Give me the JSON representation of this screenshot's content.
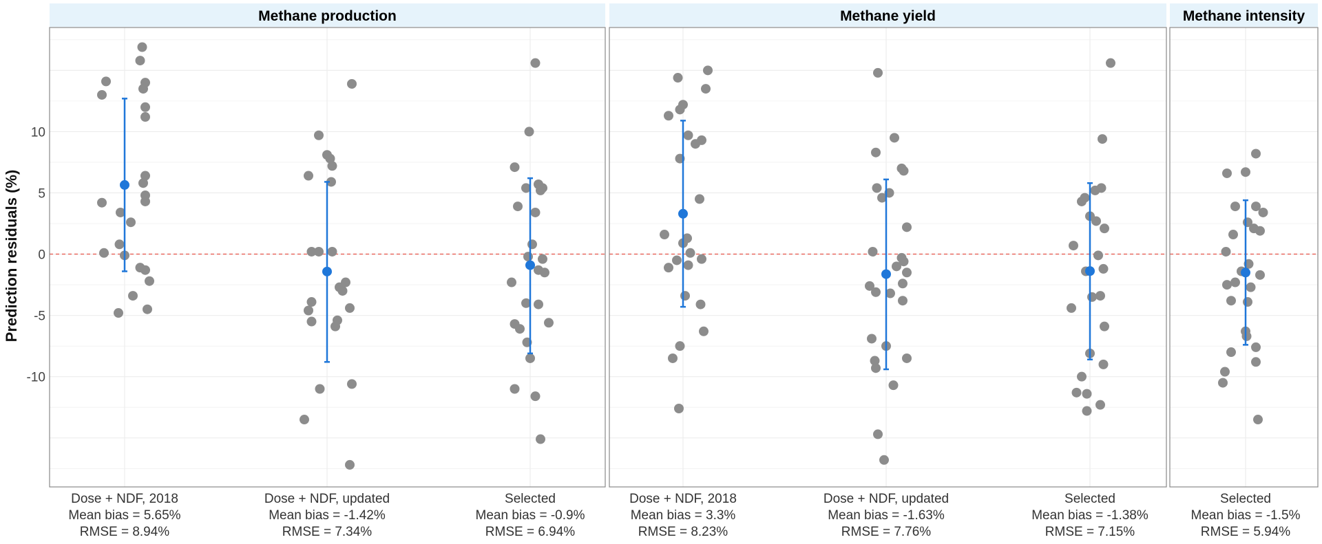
{
  "chart_data": {
    "type": "scatter",
    "ylabel": "Prediction residuals (%)",
    "ylim": [
      -19,
      18.5
    ],
    "y_ticks": [
      -10,
      -5,
      0,
      5,
      10
    ],
    "y_tick_labels": [
      "-10",
      "-5",
      "0",
      "5",
      "10"
    ],
    "reference_line": {
      "y": 0,
      "style": "dashed",
      "color": "#e8685e"
    },
    "colors": {
      "point": "#8c8c8c",
      "mean": "#1f77d9",
      "strip_bg": "#e6f3fb",
      "panel_border": "#888888",
      "grid": "#ececec"
    },
    "panels": [
      {
        "title": "Methane production",
        "groups": [
          {
            "label": "Dose + NDF, 2018",
            "mean_bias_label": "Mean bias = 5.65%",
            "rmse_label": "RMSE = 8.94%",
            "mean": 5.65,
            "ci": [
              -1.4,
              12.7
            ],
            "points": [
              [
                0.17,
                16.9
              ],
              [
                0.15,
                15.8
              ],
              [
                -0.18,
                14.1
              ],
              [
                0.2,
                14.0
              ],
              [
                0.18,
                13.5
              ],
              [
                -0.22,
                13.0
              ],
              [
                0.2,
                12.0
              ],
              [
                0.2,
                11.2
              ],
              [
                0.2,
                6.4
              ],
              [
                0.18,
                5.8
              ],
              [
                0.2,
                4.8
              ],
              [
                0.2,
                4.3
              ],
              [
                -0.22,
                4.2
              ],
              [
                -0.04,
                3.4
              ],
              [
                0.06,
                2.6
              ],
              [
                -0.05,
                0.8
              ],
              [
                -0.2,
                0.1
              ],
              [
                0.0,
                -0.1
              ],
              [
                0.15,
                -1.1
              ],
              [
                0.2,
                -1.3
              ],
              [
                0.24,
                -2.2
              ],
              [
                0.08,
                -3.4
              ],
              [
                0.22,
                -4.5
              ],
              [
                -0.06,
                -4.8
              ]
            ]
          },
          {
            "label": "Dose + NDF, updated",
            "mean_bias_label": "Mean bias = -1.42%",
            "rmse_label": "RMSE = 7.34%",
            "mean": -1.42,
            "ci": [
              -8.8,
              5.9
            ],
            "points": [
              [
                0.24,
                13.9
              ],
              [
                -0.08,
                9.7
              ],
              [
                0.0,
                8.1
              ],
              [
                0.03,
                7.8
              ],
              [
                0.05,
                7.2
              ],
              [
                -0.18,
                6.4
              ],
              [
                0.04,
                5.9
              ],
              [
                -0.15,
                0.2
              ],
              [
                -0.08,
                0.2
              ],
              [
                0.05,
                0.2
              ],
              [
                0.18,
                -2.3
              ],
              [
                0.12,
                -2.7
              ],
              [
                0.15,
                -3.0
              ],
              [
                -0.15,
                -3.9
              ],
              [
                0.22,
                -4.4
              ],
              [
                -0.18,
                -4.6
              ],
              [
                0.1,
                -5.4
              ],
              [
                -0.15,
                -5.5
              ],
              [
                0.08,
                -5.9
              ],
              [
                -0.07,
                -11.0
              ],
              [
                0.24,
                -10.6
              ],
              [
                -0.22,
                -13.5
              ],
              [
                0.22,
                -17.2
              ]
            ]
          },
          {
            "label": "Selected",
            "mean_bias_label": "Mean bias = -0.9%",
            "rmse_label": "RMSE = 6.94%",
            "mean": -0.9,
            "ci": [
              -8.1,
              6.2
            ],
            "points": [
              [
                0.05,
                15.6
              ],
              [
                -0.01,
                10.0
              ],
              [
                -0.15,
                7.1
              ],
              [
                0.08,
                5.7
              ],
              [
                0.12,
                5.4
              ],
              [
                -0.04,
                5.4
              ],
              [
                0.1,
                5.2
              ],
              [
                -0.12,
                3.9
              ],
              [
                0.05,
                3.4
              ],
              [
                0.02,
                0.8
              ],
              [
                -0.02,
                -0.2
              ],
              [
                0.12,
                -0.4
              ],
              [
                0.08,
                -1.3
              ],
              [
                0.14,
                -1.5
              ],
              [
                -0.18,
                -2.3
              ],
              [
                -0.04,
                -4.0
              ],
              [
                0.08,
                -4.1
              ],
              [
                0.18,
                -5.6
              ],
              [
                -0.15,
                -5.7
              ],
              [
                -0.1,
                -6.1
              ],
              [
                -0.03,
                -7.2
              ],
              [
                0.0,
                -8.5
              ],
              [
                -0.15,
                -11.0
              ],
              [
                0.05,
                -11.6
              ],
              [
                0.1,
                -15.1
              ]
            ]
          }
        ]
      },
      {
        "title": "Methane yield",
        "groups": [
          {
            "label": "Dose + NDF, 2018",
            "mean_bias_label": "Mean bias = 3.3%",
            "rmse_label": "RMSE = 8.23%",
            "mean": 3.3,
            "ci": [
              -4.3,
              10.9
            ],
            "points": [
              [
                0.24,
                15.0
              ],
              [
                -0.05,
                14.4
              ],
              [
                0.22,
                13.5
              ],
              [
                0.0,
                12.2
              ],
              [
                -0.03,
                11.8
              ],
              [
                -0.14,
                11.3
              ],
              [
                0.05,
                9.7
              ],
              [
                0.18,
                9.3
              ],
              [
                0.12,
                9.0
              ],
              [
                -0.03,
                7.8
              ],
              [
                0.16,
                4.5
              ],
              [
                -0.18,
                1.6
              ],
              [
                0.04,
                1.3
              ],
              [
                0.0,
                0.9
              ],
              [
                0.07,
                0.1
              ],
              [
                -0.06,
                -0.5
              ],
              [
                0.18,
                -0.4
              ],
              [
                0.05,
                -0.9
              ],
              [
                -0.14,
                -1.1
              ],
              [
                0.02,
                -3.4
              ],
              [
                0.17,
                -4.1
              ],
              [
                0.2,
                -6.3
              ],
              [
                -0.03,
                -7.5
              ],
              [
                -0.1,
                -8.5
              ],
              [
                -0.04,
                -12.6
              ]
            ]
          },
          {
            "label": "Dose + NDF, updated",
            "mean_bias_label": "Mean bias = -1.63%",
            "rmse_label": "RMSE = 7.76%",
            "mean": -1.63,
            "ci": [
              -9.4,
              6.1
            ],
            "points": [
              [
                -0.08,
                14.8
              ],
              [
                0.08,
                9.5
              ],
              [
                -0.1,
                8.3
              ],
              [
                0.15,
                7.0
              ],
              [
                0.17,
                6.8
              ],
              [
                -0.09,
                5.4
              ],
              [
                0.03,
                5.0
              ],
              [
                -0.04,
                4.6
              ],
              [
                0.2,
                2.2
              ],
              [
                -0.13,
                0.2
              ],
              [
                0.15,
                -0.3
              ],
              [
                0.17,
                -0.6
              ],
              [
                0.1,
                -1.0
              ],
              [
                0.2,
                -1.5
              ],
              [
                -0.16,
                -2.6
              ],
              [
                0.16,
                -2.4
              ],
              [
                -0.1,
                -3.1
              ],
              [
                0.04,
                -3.2
              ],
              [
                0.16,
                -3.8
              ],
              [
                -0.14,
                -6.9
              ],
              [
                0.0,
                -7.5
              ],
              [
                -0.11,
                -8.7
              ],
              [
                0.2,
                -8.5
              ],
              [
                -0.1,
                -9.3
              ],
              [
                0.07,
                -10.7
              ],
              [
                -0.08,
                -14.7
              ],
              [
                -0.02,
                -16.8
              ]
            ]
          },
          {
            "label": "Selected",
            "mean_bias_label": "Mean bias = -1.38%",
            "rmse_label": "RMSE = 7.15%",
            "mean": -1.38,
            "ci": [
              -8.6,
              5.8
            ],
            "points": [
              [
                0.2,
                15.6
              ],
              [
                0.12,
                9.4
              ],
              [
                0.05,
                5.2
              ],
              [
                0.11,
                5.4
              ],
              [
                -0.08,
                4.3
              ],
              [
                -0.05,
                4.6
              ],
              [
                0.0,
                3.1
              ],
              [
                0.06,
                2.7
              ],
              [
                0.14,
                2.1
              ],
              [
                -0.16,
                0.7
              ],
              [
                0.08,
                -0.1
              ],
              [
                0.13,
                -1.2
              ],
              [
                -0.04,
                -1.4
              ],
              [
                0.1,
                -3.4
              ],
              [
                0.02,
                -3.5
              ],
              [
                -0.18,
                -4.4
              ],
              [
                0.14,
                -5.9
              ],
              [
                0.0,
                -8.1
              ],
              [
                0.13,
                -9.0
              ],
              [
                -0.08,
                -10.0
              ],
              [
                -0.13,
                -11.3
              ],
              [
                -0.03,
                -11.4
              ],
              [
                0.1,
                -12.3
              ],
              [
                -0.03,
                -12.8
              ]
            ]
          }
        ]
      },
      {
        "title": "Methane intensity",
        "groups": [
          {
            "label": "Selected",
            "mean_bias_label": "Mean bias = -1.5%",
            "rmse_label": "RMSE = 5.94%",
            "mean": -1.5,
            "ci": [
              -7.4,
              4.4
            ],
            "points": [
              [
                0.1,
                8.2
              ],
              [
                -0.18,
                6.6
              ],
              [
                0.0,
                6.7
              ],
              [
                -0.1,
                3.9
              ],
              [
                0.1,
                3.9
              ],
              [
                0.17,
                3.4
              ],
              [
                0.02,
                2.6
              ],
              [
                0.08,
                2.1
              ],
              [
                0.14,
                1.9
              ],
              [
                -0.12,
                1.6
              ],
              [
                -0.19,
                0.2
              ],
              [
                0.03,
                -0.8
              ],
              [
                -0.04,
                -1.4
              ],
              [
                0.14,
                -1.7
              ],
              [
                -0.1,
                -2.3
              ],
              [
                -0.18,
                -2.5
              ],
              [
                0.05,
                -2.7
              ],
              [
                0.02,
                -3.9
              ],
              [
                -0.14,
                -3.8
              ],
              [
                0.0,
                -6.3
              ],
              [
                0.01,
                -6.7
              ],
              [
                0.1,
                -7.6
              ],
              [
                -0.14,
                -8.0
              ],
              [
                0.1,
                -8.8
              ],
              [
                -0.2,
                -9.6
              ],
              [
                -0.22,
                -10.5
              ],
              [
                0.12,
                -13.5
              ]
            ]
          }
        ]
      }
    ]
  }
}
